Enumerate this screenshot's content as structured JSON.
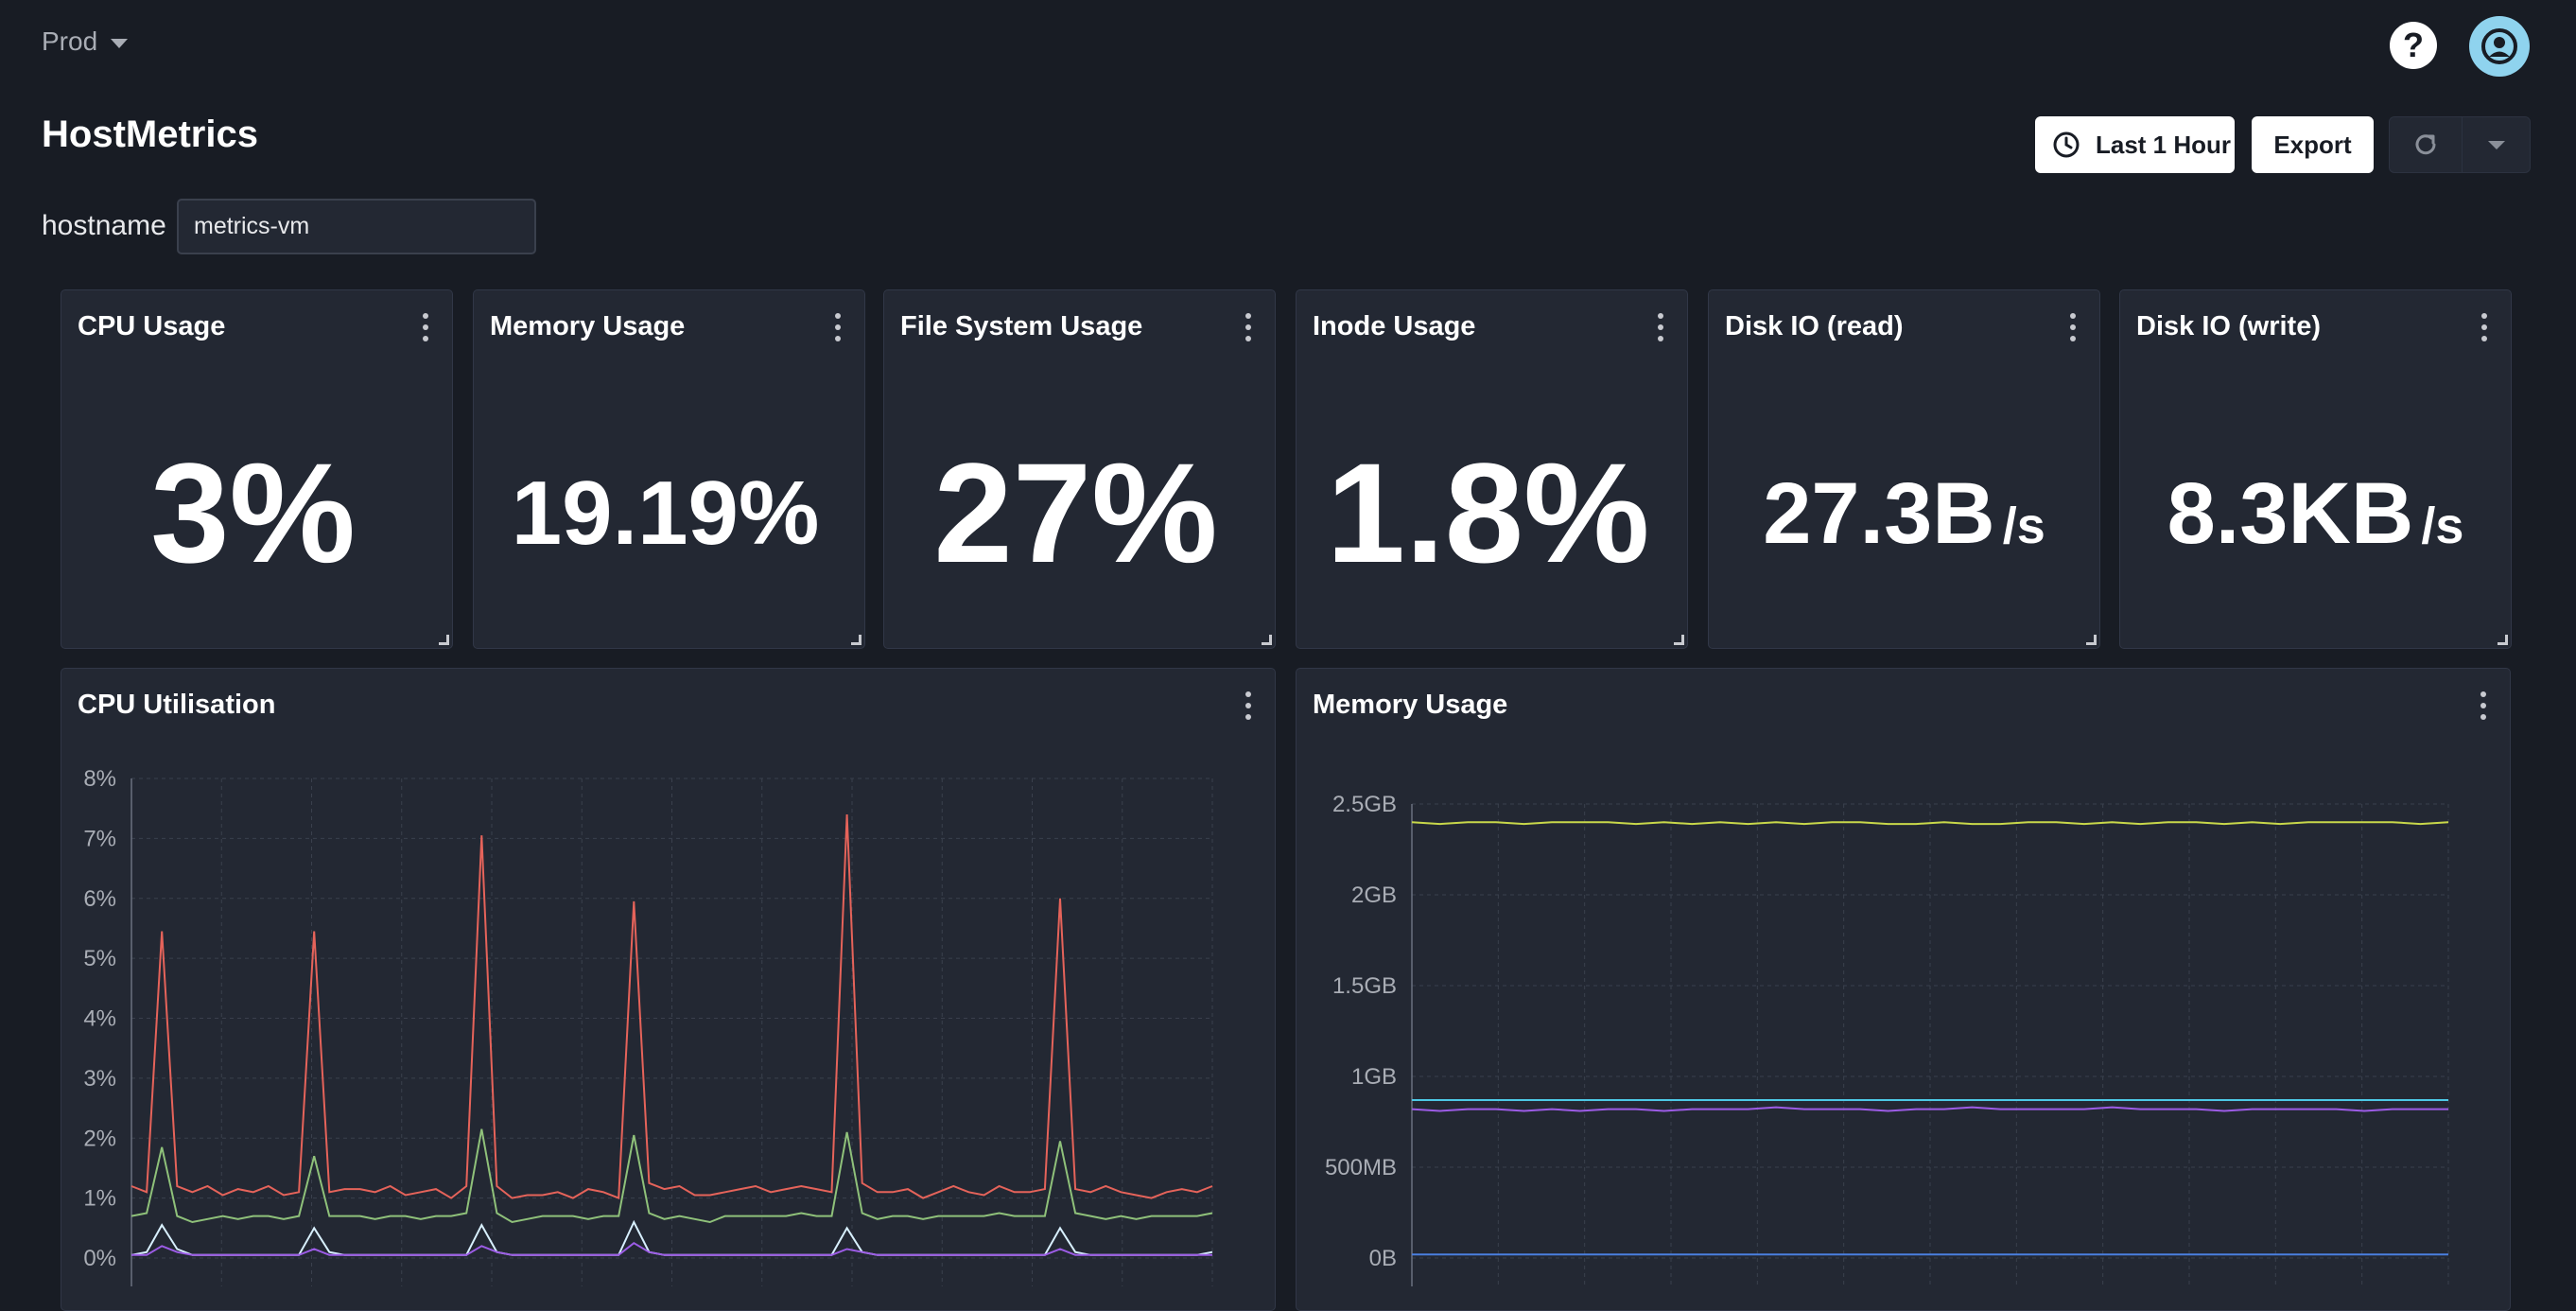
{
  "topbar": {
    "environment": "Prod",
    "help_icon": "help-icon",
    "avatar_icon": "user-circle-icon"
  },
  "page": {
    "title": "HostMetrics"
  },
  "toolbar": {
    "time_range_label": "Last 1 Hour",
    "time_icon": "clock-icon",
    "export_label": "Export",
    "refresh_icon": "refresh-icon",
    "refresh_menu_icon": "chevron-down-icon"
  },
  "variables": {
    "hostname_label": "hostname",
    "hostname_value": "metrics-vm"
  },
  "stats": [
    {
      "title": "CPU Usage",
      "value": "3%",
      "unit": ""
    },
    {
      "title": "Memory Usage",
      "value": "19.19%",
      "unit": ""
    },
    {
      "title": "File System Usage",
      "value": "27%",
      "unit": ""
    },
    {
      "title": "Inode Usage",
      "value": "1.8%",
      "unit": ""
    },
    {
      "title": "Disk IO (read)",
      "value": "27.3B",
      "unit": "/s"
    },
    {
      "title": "Disk IO (write)",
      "value": "8.3KB",
      "unit": "/s"
    }
  ],
  "colors": {
    "background": "#181c24",
    "panel": "#232833",
    "series_red": "#e5635a",
    "series_green": "#8fc17a",
    "series_white": "#d8f0ff",
    "series_purple": "#9c5ce6",
    "series_yellow": "#c8d84a",
    "series_cyan": "#4dc9e6",
    "series_blue": "#4a7fe0"
  },
  "chart_data": [
    {
      "type": "line",
      "title": "CPU Utilisation",
      "ylim": [
        0,
        8
      ],
      "ytick_labels": [
        "0%",
        "1%",
        "2%",
        "3%",
        "4%",
        "5%",
        "6%",
        "7%",
        "8%"
      ],
      "grid": true,
      "series": [
        {
          "color": "#e5635a",
          "values": [
            1.2,
            1.1,
            5.45,
            1.2,
            1.1,
            1.2,
            1.05,
            1.15,
            1.1,
            1.2,
            1.05,
            1.1,
            5.45,
            1.1,
            1.15,
            1.15,
            1.1,
            1.2,
            1.05,
            1.1,
            1.15,
            1.0,
            1.2,
            7.05,
            1.2,
            1.0,
            1.05,
            1.05,
            1.1,
            1.0,
            1.15,
            1.1,
            1.0,
            5.95,
            1.25,
            1.15,
            1.2,
            1.05,
            1.05,
            1.1,
            1.15,
            1.2,
            1.1,
            1.15,
            1.2,
            1.15,
            1.1,
            7.4,
            1.25,
            1.1,
            1.1,
            1.15,
            1.0,
            1.1,
            1.2,
            1.1,
            1.05,
            1.2,
            1.1,
            1.1,
            1.15,
            6.0,
            1.15,
            1.1,
            1.2,
            1.1,
            1.05,
            1.0,
            1.1,
            1.15,
            1.1,
            1.2
          ]
        },
        {
          "color": "#8fc17a",
          "values": [
            0.7,
            0.75,
            1.85,
            0.7,
            0.6,
            0.65,
            0.7,
            0.65,
            0.7,
            0.7,
            0.65,
            0.7,
            1.7,
            0.7,
            0.7,
            0.7,
            0.65,
            0.7,
            0.7,
            0.65,
            0.7,
            0.7,
            0.75,
            2.15,
            0.75,
            0.6,
            0.65,
            0.7,
            0.7,
            0.7,
            0.65,
            0.7,
            0.7,
            2.05,
            0.75,
            0.65,
            0.7,
            0.65,
            0.6,
            0.7,
            0.7,
            0.7,
            0.7,
            0.7,
            0.75,
            0.7,
            0.7,
            2.1,
            0.75,
            0.65,
            0.7,
            0.7,
            0.65,
            0.7,
            0.7,
            0.7,
            0.7,
            0.75,
            0.7,
            0.7,
            0.7,
            1.95,
            0.75,
            0.7,
            0.65,
            0.7,
            0.65,
            0.7,
            0.7,
            0.7,
            0.7,
            0.75
          ]
        },
        {
          "color": "#d8f0ff",
          "values": [
            0.05,
            0.1,
            0.55,
            0.15,
            0.05,
            0.05,
            0.05,
            0.05,
            0.05,
            0.05,
            0.05,
            0.05,
            0.5,
            0.1,
            0.05,
            0.05,
            0.05,
            0.05,
            0.05,
            0.05,
            0.05,
            0.05,
            0.05,
            0.55,
            0.1,
            0.05,
            0.05,
            0.05,
            0.05,
            0.05,
            0.05,
            0.05,
            0.05,
            0.6,
            0.1,
            0.05,
            0.05,
            0.05,
            0.05,
            0.05,
            0.05,
            0.05,
            0.05,
            0.05,
            0.05,
            0.05,
            0.05,
            0.5,
            0.1,
            0.05,
            0.05,
            0.05,
            0.05,
            0.05,
            0.05,
            0.05,
            0.05,
            0.05,
            0.05,
            0.05,
            0.05,
            0.5,
            0.1,
            0.05,
            0.05,
            0.05,
            0.05,
            0.05,
            0.05,
            0.05,
            0.05,
            0.1
          ]
        },
        {
          "color": "#9c5ce6",
          "values": [
            0.05,
            0.05,
            0.2,
            0.1,
            0.05,
            0.05,
            0.05,
            0.05,
            0.05,
            0.05,
            0.05,
            0.05,
            0.15,
            0.05,
            0.05,
            0.05,
            0.05,
            0.05,
            0.05,
            0.05,
            0.05,
            0.05,
            0.05,
            0.2,
            0.1,
            0.05,
            0.05,
            0.05,
            0.05,
            0.05,
            0.05,
            0.05,
            0.05,
            0.25,
            0.1,
            0.05,
            0.05,
            0.05,
            0.05,
            0.05,
            0.05,
            0.05,
            0.05,
            0.05,
            0.05,
            0.05,
            0.05,
            0.15,
            0.1,
            0.05,
            0.05,
            0.05,
            0.05,
            0.05,
            0.05,
            0.05,
            0.05,
            0.05,
            0.05,
            0.05,
            0.05,
            0.15,
            0.05,
            0.05,
            0.05,
            0.05,
            0.05,
            0.05,
            0.05,
            0.05,
            0.05,
            0.05
          ]
        }
      ]
    },
    {
      "type": "line",
      "title": "Memory Usage",
      "ylim": [
        0,
        2.5
      ],
      "ytick_values": [
        0,
        0.5,
        1,
        1.5,
        2,
        2.5
      ],
      "ytick_labels": [
        "0B",
        "500MB",
        "1GB",
        "1.5GB",
        "2GB",
        "2.5GB"
      ],
      "grid": true,
      "series": [
        {
          "color": "#c8d84a",
          "values": [
            2.4,
            2.39,
            2.4,
            2.4,
            2.39,
            2.4,
            2.4,
            2.4,
            2.39,
            2.4,
            2.39,
            2.4,
            2.39,
            2.4,
            2.39,
            2.4,
            2.4,
            2.39,
            2.39,
            2.4,
            2.39,
            2.39,
            2.4,
            2.4,
            2.39,
            2.4,
            2.39,
            2.4,
            2.4,
            2.39,
            2.4,
            2.39,
            2.4,
            2.4,
            2.4,
            2.4,
            2.39,
            2.4
          ]
        },
        {
          "color": "#4dc9e6",
          "values": [
            0.87,
            0.87,
            0.87,
            0.87,
            0.87,
            0.87,
            0.87,
            0.87,
            0.87,
            0.87,
            0.87,
            0.87,
            0.87,
            0.87,
            0.87,
            0.87,
            0.87,
            0.87,
            0.87,
            0.87,
            0.87,
            0.87,
            0.87,
            0.87,
            0.87,
            0.87,
            0.87,
            0.87,
            0.87,
            0.87,
            0.87,
            0.87,
            0.87,
            0.87,
            0.87,
            0.87,
            0.87,
            0.87
          ]
        },
        {
          "color": "#9c5ce6",
          "values": [
            0.82,
            0.81,
            0.82,
            0.82,
            0.81,
            0.82,
            0.81,
            0.82,
            0.82,
            0.81,
            0.82,
            0.82,
            0.82,
            0.83,
            0.82,
            0.82,
            0.82,
            0.81,
            0.82,
            0.82,
            0.83,
            0.82,
            0.82,
            0.82,
            0.82,
            0.83,
            0.82,
            0.82,
            0.82,
            0.81,
            0.82,
            0.82,
            0.82,
            0.82,
            0.81,
            0.82,
            0.82,
            0.82
          ]
        },
        {
          "color": "#4a7fe0",
          "values": [
            0.02,
            0.02,
            0.02,
            0.02,
            0.02,
            0.02,
            0.02,
            0.02,
            0.02,
            0.02,
            0.02,
            0.02,
            0.02,
            0.02,
            0.02,
            0.02,
            0.02,
            0.02,
            0.02,
            0.02,
            0.02,
            0.02,
            0.02,
            0.02,
            0.02,
            0.02,
            0.02,
            0.02,
            0.02,
            0.02,
            0.02,
            0.02,
            0.02,
            0.02,
            0.02,
            0.02,
            0.02,
            0.02
          ]
        }
      ]
    }
  ]
}
